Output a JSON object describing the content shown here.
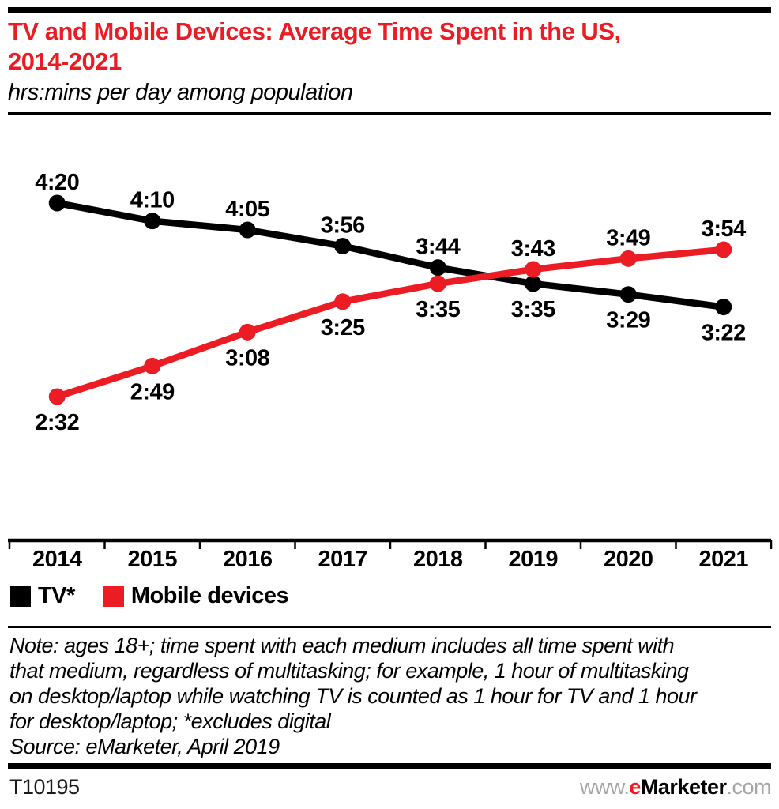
{
  "header": {
    "title_lines": [
      "TV and Mobile Devices: Average Time Spent in the US,",
      "2014-2021"
    ],
    "subtitle": "hrs:mins per day among population"
  },
  "colors": {
    "tv": "#000000",
    "mobile": "#EC1C24",
    "title_red": "#EC1C24",
    "muted_gray": "#A7A5A6"
  },
  "chart_data": {
    "type": "line",
    "title": "TV and Mobile Devices: Average Time Spent in the US, 2014-2021",
    "subtitle": "hrs:mins per day among population",
    "xlabel": "",
    "ylabel": "hrs:mins per day",
    "grid": false,
    "legend_position": "bottom-left",
    "categories": [
      "2014",
      "2015",
      "2016",
      "2017",
      "2018",
      "2019",
      "2020",
      "2021"
    ],
    "series": [
      {
        "name": "TV*",
        "color_key": "tv",
        "values": [
          "4:20",
          "4:10",
          "4:05",
          "3:56",
          "3:44",
          "3:35",
          "3:29",
          "3:22"
        ],
        "values_minutes": [
          260,
          250,
          245,
          236,
          224,
          215,
          209,
          202
        ],
        "label_positions": [
          "above",
          "above",
          "above",
          "above",
          "above",
          "below",
          "below",
          "below"
        ]
      },
      {
        "name": "Mobile devices",
        "color_key": "mobile",
        "values": [
          "2:32",
          "2:49",
          "3:08",
          "3:25",
          "3:35",
          "3:43",
          "3:49",
          "3:54"
        ],
        "values_minutes": [
          152,
          169,
          188,
          205,
          215,
          223,
          229,
          234
        ],
        "label_positions": [
          "below",
          "below",
          "below",
          "below",
          "below",
          "above",
          "above",
          "above"
        ]
      }
    ]
  },
  "legend": {
    "items": [
      {
        "label": "TV*",
        "color_key": "tv"
      },
      {
        "label": "Mobile devices",
        "color_key": "mobile"
      }
    ]
  },
  "note": {
    "lines": [
      "Note: ages 18+; time spent with each medium includes all time spent with",
      "that medium, regardless of multitasking; for example, 1 hour of multitasking",
      "on desktop/laptop while watching TV is counted as 1 hour for TV and 1 hour",
      "for desktop/laptop; *excludes digital"
    ],
    "source": "Source: eMarketer, April 2019"
  },
  "footer": {
    "chart_id": "T10195",
    "site": {
      "prefix": "www.",
      "brand_e": "e",
      "brand_rest": "Marketer",
      "suffix": ".com"
    }
  }
}
